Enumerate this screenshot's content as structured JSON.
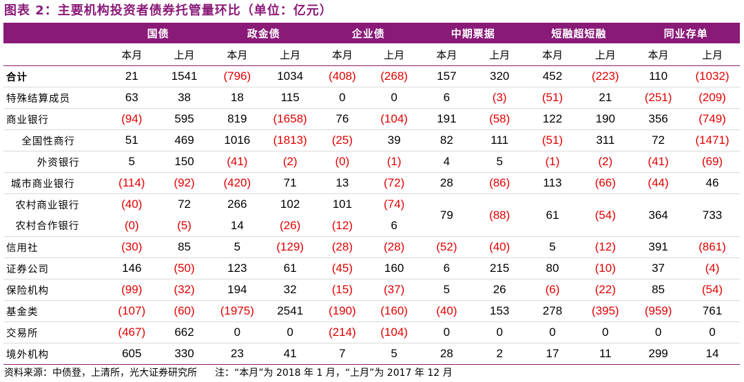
{
  "title": "图表 2：主要机构投资者债券托管量环比（单位：亿元）",
  "colors": {
    "header_bg": "#8a1a78",
    "negative": "#e00000"
  },
  "groups": [
    "国债",
    "政金债",
    "企业债",
    "中期票据",
    "短融超短融",
    "同业存单"
  ],
  "sub": [
    "本月",
    "上月"
  ],
  "rows": [
    {
      "label": "合计",
      "indent": 0,
      "bold": true,
      "cells": [
        "21",
        "1541",
        "(796)",
        "1034",
        "(408)",
        "(268)",
        "157",
        "320",
        "452",
        "(223)",
        "110",
        "(1032)"
      ]
    },
    {
      "label": "特殊结算成员",
      "indent": 0,
      "cells": [
        "63",
        "38",
        "18",
        "115",
        "0",
        "0",
        "6",
        "(3)",
        "(51)",
        "21",
        "(251)",
        "(209)"
      ]
    },
    {
      "label": "商业银行",
      "indent": 0,
      "cells": [
        "(94)",
        "595",
        "819",
        "(1658)",
        "76",
        "(104)",
        "191",
        "(58)",
        "122",
        "190",
        "356",
        "(749)"
      ]
    },
    {
      "label": "全国性商行",
      "indent": 1,
      "cells": [
        "51",
        "469",
        "1016",
        "(1813)",
        "(25)",
        "39",
        "82",
        "111",
        "(51)",
        "311",
        "72",
        "(1471)"
      ]
    },
    {
      "label": "外资银行",
      "indent": 2,
      "cells": [
        "5",
        "150",
        "(41)",
        "(2)",
        "(0)",
        "(1)",
        "4",
        "5",
        "(1)",
        "(2)",
        "(41)",
        "(69)"
      ]
    },
    {
      "label": "城市商业银行",
      "indent": 0.3,
      "cells": [
        "(114)",
        "(92)",
        "(420)",
        "71",
        "13",
        "(72)",
        "28",
        "(86)",
        "113",
        "(66)",
        "(44)",
        "46"
      ]
    },
    {
      "label": "农村商业银行",
      "indent": 0.6,
      "cells": [
        "(40)",
        "72",
        "266",
        "102",
        "101",
        "(74)"
      ],
      "merged": [
        "79",
        "(88)",
        "61",
        "(54)",
        "364",
        "733"
      ]
    },
    {
      "label": "农村合作银行",
      "indent": 0.6,
      "cells": [
        "(0)",
        "(5)",
        "14",
        "(26)",
        "(12)",
        "6"
      ]
    },
    {
      "label": "信用社",
      "indent": 0,
      "cells": [
        "(30)",
        "85",
        "5",
        "(129)",
        "(28)",
        "(28)",
        "(52)",
        "(40)",
        "5",
        "(12)",
        "391",
        "(861)"
      ]
    },
    {
      "label": "证券公司",
      "indent": 0,
      "cells": [
        "146",
        "(50)",
        "123",
        "61",
        "(45)",
        "160",
        "6",
        "215",
        "80",
        "(10)",
        "37",
        "(4)"
      ]
    },
    {
      "label": "保险机构",
      "indent": 0,
      "cells": [
        "(99)",
        "(32)",
        "194",
        "32",
        "(15)",
        "(37)",
        "5",
        "26",
        "(6)",
        "(22)",
        "85",
        "(54)"
      ]
    },
    {
      "label": "基金类",
      "indent": 0,
      "cells": [
        "(107)",
        "(60)",
        "(1975)",
        "2541",
        "(190)",
        "(160)",
        "(40)",
        "153",
        "278",
        "(395)",
        "(959)",
        "761"
      ]
    },
    {
      "label": "交易所",
      "indent": 0,
      "cells": [
        "(467)",
        "662",
        "0",
        "0",
        "(214)",
        "(104)",
        "0",
        "0",
        "0",
        "0",
        "0",
        "0"
      ]
    },
    {
      "label": "境外机构",
      "indent": 0,
      "cells": [
        "605",
        "330",
        "23",
        "41",
        "7",
        "5",
        "28",
        "2",
        "17",
        "11",
        "299",
        "14"
      ]
    }
  ],
  "footer": {
    "source": "资料来源：中债登，上清所，光大证券研究所",
    "note": "注：“本月”为 2018 年 1 月，“上月”为 2017 年 12 月"
  }
}
